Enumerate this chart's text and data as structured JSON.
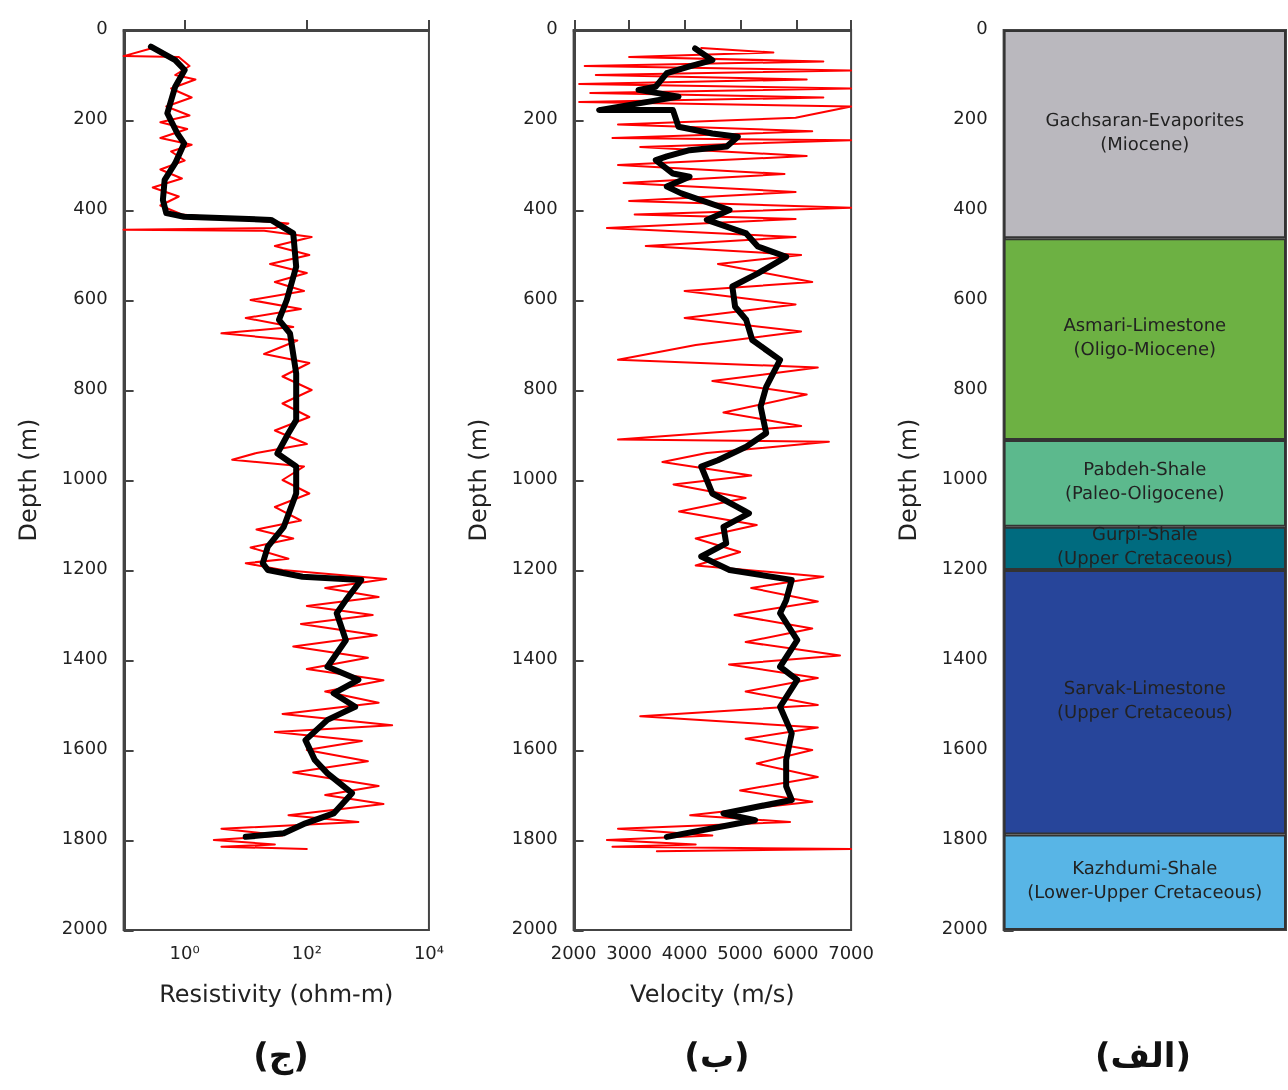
{
  "chart_data": [
    {
      "type": "line",
      "title": "(ج)",
      "xlabel": "Resistivity (ohm-m)",
      "ylabel": "Depth (m)",
      "log": "x",
      "marker": "none",
      "line_style": "solid",
      "xlim": [
        0.1,
        10000
      ],
      "xticks": [
        {
          "value": 1,
          "label": "10⁰"
        },
        {
          "value": 100,
          "label": "10²"
        },
        {
          "value": 10000,
          "label": "10⁴"
        }
      ],
      "ylim": [
        2000,
        0
      ],
      "yticks": [
        0,
        200,
        400,
        600,
        800,
        1000,
        1200,
        1400,
        1600,
        1800,
        2000
      ],
      "series": [
        {
          "color": "#ff0000",
          "x": [
            0.3,
            0.1,
            0.8,
            1.2,
            0.7,
            1.5,
            0.6,
            1.3,
            0.5,
            1.2,
            0.4,
            1.1,
            0.4,
            1.3,
            0.6,
            1.0,
            0.4,
            0.9,
            0.3,
            0.8,
            0.4,
            0.9,
            50,
            30,
            0.1,
            20,
            120,
            30,
            110,
            25,
            100,
            30,
            90,
            12,
            80,
            10,
            60,
            4,
            70,
            20,
            110,
            40,
            120,
            40,
            110,
            30,
            100,
            15,
            6,
            90,
            40,
            110,
            30,
            80,
            15,
            60,
            12,
            50,
            10,
            40,
            2000,
            200,
            1500,
            100,
            1200,
            80,
            1400,
            60,
            1000,
            100,
            1800,
            200,
            1500,
            40,
            2500,
            30,
            800,
            100,
            1000,
            60,
            1500,
            200,
            1800,
            50,
            700,
            4,
            40,
            3,
            30,
            4,
            100
          ],
          "values": [
            40,
            58,
            60,
            80,
            100,
            110,
            130,
            150,
            170,
            190,
            205,
            220,
            240,
            255,
            270,
            290,
            310,
            330,
            350,
            370,
            390,
            410,
            430,
            440,
            444,
            446,
            460,
            480,
            500,
            520,
            540,
            560,
            580,
            600,
            620,
            640,
            660,
            674,
            690,
            720,
            740,
            770,
            800,
            830,
            860,
            890,
            920,
            940,
            955,
            970,
            1000,
            1030,
            1060,
            1090,
            1110,
            1130,
            1150,
            1175,
            1185,
            1200,
            1220,
            1240,
            1260,
            1280,
            1300,
            1320,
            1345,
            1370,
            1395,
            1420,
            1445,
            1470,
            1495,
            1520,
            1545,
            1560,
            1580,
            1600,
            1625,
            1650,
            1680,
            1700,
            1720,
            1745,
            1760,
            1775,
            1790,
            1800,
            1810,
            1815,
            1820
          ]
        },
        {
          "color": "#000000",
          "x": [
            0.28,
            0.7,
            1.0,
            0.7,
            0.52,
            0.76,
            0.98,
            0.7,
            0.47,
            0.44,
            0.5,
            0.98,
            26,
            60,
            67,
            47,
            35,
            53,
            67,
            67,
            50,
            33,
            67,
            67,
            42,
            23,
            19,
            23,
            85,
            780,
            436,
            309,
            436,
            218,
            700,
            275,
            620,
            218,
            95,
            135,
            218,
            550,
            275,
            95,
            42,
            10
          ],
          "values": [
            37,
            67,
            89,
            126,
            185,
            230,
            252,
            296,
            333,
            378,
            407,
            415,
            422,
            452,
            526,
            600,
            644,
            674,
            763,
            867,
            896,
            941,
            970,
            1030,
            1104,
            1148,
            1185,
            1200,
            1215,
            1222,
            1267,
            1296,
            1356,
            1415,
            1444,
            1474,
            1504,
            1533,
            1578,
            1622,
            1652,
            1696,
            1741,
            1763,
            1785,
            1793
          ]
        }
      ]
    },
    {
      "type": "line",
      "title": "(ب)",
      "xlabel": "Velocity (m/s)",
      "ylabel": "Depth (m)",
      "marker": "none",
      "line_style": "solid",
      "xlim": [
        2000,
        7000
      ],
      "xticks": [
        2000,
        3000,
        4000,
        5000,
        6000,
        7000
      ],
      "ylim": [
        2000,
        0
      ],
      "yticks": [
        0,
        200,
        400,
        600,
        800,
        1000,
        1200,
        1400,
        1600,
        1800,
        2000
      ],
      "series": [
        {
          "color": "#ff0000",
          "x": [
            4300,
            5600,
            3000,
            6500,
            2200,
            7000,
            2400,
            6200,
            2100,
            7000,
            2300,
            6500,
            2100,
            7000,
            6000,
            2800,
            6300,
            2700,
            7000,
            3200,
            6200,
            2800,
            5800,
            2900,
            6000,
            3000,
            7000,
            3100,
            6000,
            2600,
            6000,
            3300,
            6100,
            4600,
            6300,
            4000,
            6000,
            4000,
            6100,
            4200,
            2800,
            6400,
            4500,
            6200,
            4700,
            6100,
            2800,
            6600,
            4400,
            3600,
            5200,
            3800,
            5100,
            3900,
            5300,
            4200,
            5000,
            4200,
            6500,
            5200,
            6400,
            4900,
            6300,
            5100,
            6800,
            4800,
            6400,
            5100,
            6400,
            3200,
            6400,
            5100,
            6300,
            5300,
            6400,
            5000,
            6300,
            4100,
            5900,
            2800,
            4500,
            2600,
            4200,
            2700,
            7000,
            3500
          ],
          "values": [
            40,
            50,
            60,
            70,
            80,
            90,
            100,
            110,
            120,
            130,
            140,
            150,
            160,
            170,
            195,
            210,
            225,
            240,
            245,
            260,
            280,
            300,
            320,
            340,
            360,
            380,
            395,
            410,
            420,
            440,
            460,
            480,
            500,
            520,
            560,
            580,
            610,
            640,
            670,
            700,
            733,
            750,
            780,
            810,
            850,
            880,
            910,
            915,
            940,
            960,
            990,
            1010,
            1040,
            1070,
            1100,
            1130,
            1160,
            1190,
            1215,
            1240,
            1270,
            1300,
            1330,
            1360,
            1390,
            1410,
            1440,
            1470,
            1500,
            1525,
            1550,
            1575,
            1600,
            1630,
            1660,
            1690,
            1715,
            1745,
            1760,
            1775,
            1790,
            1800,
            1810,
            1815,
            1820,
            1825
          ]
        },
        {
          "color": "#000000",
          "x": [
            4190,
            4500,
            4090,
            3680,
            3480,
            3170,
            3890,
            2460,
            3790,
            3890,
            4500,
            4960,
            4760,
            4090,
            3680,
            3480,
            3790,
            4090,
            3680,
            3940,
            4810,
            4400,
            5110,
            5320,
            5830,
            5320,
            4860,
            4910,
            5110,
            5220,
            5720,
            5470,
            5370,
            5470,
            5110,
            4600,
            4300,
            4500,
            5160,
            4700,
            4750,
            4300,
            4810,
            5930,
            5830,
            5720,
            6030,
            5720,
            6030,
            5720,
            5930,
            5830,
            5830,
            5930,
            4700,
            5270,
            3680
          ],
          "values": [
            41,
            67,
            81,
            96,
            126,
            133,
            148,
            178,
            178,
            215,
            230,
            237,
            259,
            267,
            281,
            289,
            319,
            326,
            348,
            363,
            400,
            422,
            452,
            481,
            504,
            541,
            570,
            615,
            644,
            689,
            733,
            793,
            837,
            896,
            926,
            956,
            970,
            1030,
            1074,
            1104,
            1141,
            1170,
            1200,
            1222,
            1267,
            1296,
            1356,
            1415,
            1444,
            1504,
            1563,
            1622,
            1681,
            1711,
            1741,
            1756,
            1793
          ]
        }
      ]
    },
    {
      "type": "bar",
      "title": "(الف)",
      "ylabel": "Depth (m)",
      "stacked": true,
      "categories": [
        null
      ],
      "ylim": [
        2000,
        0
      ],
      "yticks": [
        0,
        200,
        400,
        600,
        800,
        1000,
        1200,
        1400,
        1600,
        1800,
        2000
      ],
      "series": [
        {
          "name": "Gachsaran-Evaporites (Miocene)",
          "color": "#bab8be",
          "values": [
            463
          ]
        },
        {
          "name": "Asmari-Limestone (Oligo-Miocene)",
          "color": "#6db143",
          "values": [
            448
          ]
        },
        {
          "name": "Pabdeh-Shale (Paleo-Oligocene)",
          "color": "#5cb98d",
          "values": [
            193
          ]
        },
        {
          "name": "Gurpi-Shale (Upper Cretaceous)",
          "color": "#006b7f",
          "values": [
            96
          ]
        },
        {
          "name": "Sarvak-Limestone (Upper Cretaceous)",
          "color": "#27459a",
          "values": [
            588
          ]
        },
        {
          "name": "Kazhdumi-Shale (Lower-Upper Cretaceous)",
          "color": "#58b5e6",
          "values": [
            212
          ]
        }
      ]
    }
  ]
}
